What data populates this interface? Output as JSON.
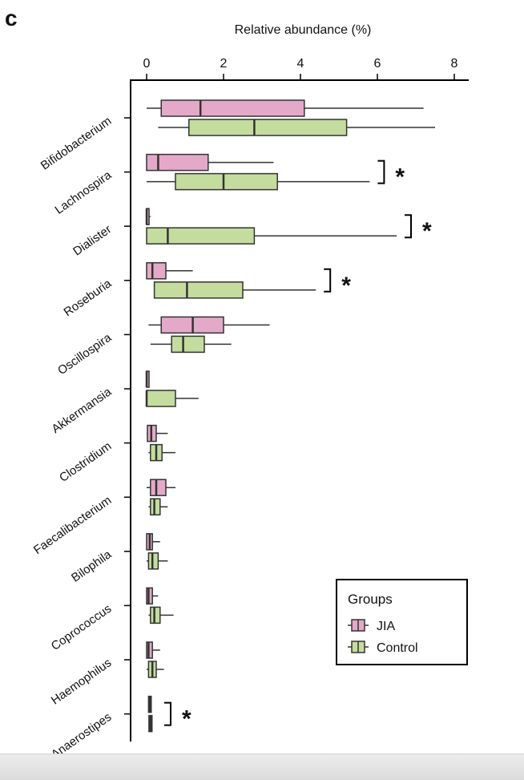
{
  "panel": {
    "letter": "c"
  },
  "colors": {
    "jia_fill": "#e4a9c8",
    "control_fill": "#c4dd9e",
    "stroke": "#333333",
    "axis": "#000000",
    "background": "#ffffff"
  },
  "chart_data": {
    "type": "boxplot",
    "title": "Relative abundance (%)",
    "xlabel": "Relative abundance (%)",
    "ylabel": "",
    "orientation": "horizontal",
    "x_axis_position": "top",
    "xlim": [
      -0.2,
      8.3
    ],
    "xticks": [
      0,
      2,
      4,
      6,
      8
    ],
    "xtick_labels": [
      "0",
      "2",
      "4",
      "6",
      "8"
    ],
    "grid": false,
    "legend": {
      "title": "Groups",
      "placement": "bottom-right",
      "entries": [
        "JIA",
        "Control"
      ]
    },
    "series_names": [
      "JIA",
      "Control"
    ],
    "categories": [
      {
        "name": "Bifidobacterium",
        "significant": false,
        "boxes": [
          {
            "group": "JIA",
            "whisker_low": 0.0,
            "q1": 0.38,
            "median": 1.4,
            "q3": 4.1,
            "whisker_high": 7.2
          },
          {
            "group": "Control",
            "whisker_low": 0.3,
            "q1": 1.1,
            "median": 2.8,
            "q3": 5.2,
            "whisker_high": 7.5
          }
        ]
      },
      {
        "name": "Lachnospira",
        "significant": true,
        "marker": "*",
        "boxes": [
          {
            "group": "JIA",
            "whisker_low": 0.0,
            "q1": 0.0,
            "median": 0.3,
            "q3": 1.6,
            "whisker_high": 3.3
          },
          {
            "group": "Control",
            "whisker_low": 0.0,
            "q1": 0.75,
            "median": 2.0,
            "q3": 3.4,
            "whisker_high": 5.8
          }
        ]
      },
      {
        "name": "Dialister",
        "significant": true,
        "marker": "*",
        "boxes": [
          {
            "group": "JIA",
            "whisker_low": 0.0,
            "q1": 0.0,
            "median": 0.0,
            "q3": 0.05,
            "whisker_high": 0.1
          },
          {
            "group": "Control",
            "whisker_low": 0.0,
            "q1": 0.0,
            "median": 0.55,
            "q3": 2.8,
            "whisker_high": 6.5
          }
        ]
      },
      {
        "name": "Roseburia",
        "significant": true,
        "marker": "*",
        "boxes": [
          {
            "group": "JIA",
            "whisker_low": 0.0,
            "q1": 0.0,
            "median": 0.15,
            "q3": 0.5,
            "whisker_high": 1.2
          },
          {
            "group": "Control",
            "whisker_low": 0.2,
            "q1": 0.2,
            "median": 1.05,
            "q3": 2.5,
            "whisker_high": 4.4
          }
        ]
      },
      {
        "name": "Oscillospira",
        "significant": false,
        "boxes": [
          {
            "group": "JIA",
            "whisker_low": 0.05,
            "q1": 0.38,
            "median": 1.2,
            "q3": 2.0,
            "whisker_high": 3.2
          },
          {
            "group": "Control",
            "whisker_low": 0.1,
            "q1": 0.65,
            "median": 0.95,
            "q3": 1.5,
            "whisker_high": 2.2
          }
        ]
      },
      {
        "name": "Akkermansia",
        "significant": false,
        "boxes": [
          {
            "group": "JIA",
            "whisker_low": 0.0,
            "q1": 0.0,
            "median": 0.0,
            "q3": 0.0,
            "whisker_high": 0.0
          },
          {
            "group": "Control",
            "whisker_low": 0.0,
            "q1": 0.0,
            "median": 0.0,
            "q3": 0.75,
            "whisker_high": 1.35
          }
        ]
      },
      {
        "name": "Clostridium",
        "significant": false,
        "boxes": [
          {
            "group": "JIA",
            "whisker_low": 0.0,
            "q1": 0.02,
            "median": 0.12,
            "q3": 0.25,
            "whisker_high": 0.55
          },
          {
            "group": "Control",
            "whisker_low": 0.05,
            "q1": 0.1,
            "median": 0.25,
            "q3": 0.4,
            "whisker_high": 0.75
          }
        ]
      },
      {
        "name": "Faecalibacterium",
        "significant": false,
        "boxes": [
          {
            "group": "JIA",
            "whisker_low": 0.0,
            "q1": 0.1,
            "median": 0.25,
            "q3": 0.5,
            "whisker_high": 0.75
          },
          {
            "group": "Control",
            "whisker_low": 0.05,
            "q1": 0.1,
            "median": 0.2,
            "q3": 0.35,
            "whisker_high": 0.55
          }
        ]
      },
      {
        "name": "Bilophila",
        "significant": false,
        "boxes": [
          {
            "group": "JIA",
            "whisker_low": 0.0,
            "q1": 0.0,
            "median": 0.08,
            "q3": 0.15,
            "whisker_high": 0.35
          },
          {
            "group": "Control",
            "whisker_low": 0.0,
            "q1": 0.05,
            "median": 0.15,
            "q3": 0.3,
            "whisker_high": 0.55
          }
        ]
      },
      {
        "name": "Coprococcus",
        "significant": false,
        "boxes": [
          {
            "group": "JIA",
            "whisker_low": 0.0,
            "q1": 0.0,
            "median": 0.05,
            "q3": 0.15,
            "whisker_high": 0.3
          },
          {
            "group": "Control",
            "whisker_low": 0.05,
            "q1": 0.1,
            "median": 0.2,
            "q3": 0.35,
            "whisker_high": 0.7
          }
        ]
      },
      {
        "name": "Haemophilus",
        "significant": false,
        "boxes": [
          {
            "group": "JIA",
            "whisker_low": 0.0,
            "q1": 0.0,
            "median": 0.05,
            "q3": 0.15,
            "whisker_high": 0.35
          },
          {
            "group": "Control",
            "whisker_low": 0.0,
            "q1": 0.05,
            "median": 0.15,
            "q3": 0.25,
            "whisker_high": 0.45
          }
        ]
      },
      {
        "name": "Anaerostipes",
        "significant": true,
        "marker": "*",
        "boxes": [
          {
            "group": "JIA",
            "whisker_low": 0.05,
            "q1": 0.05,
            "median": 0.08,
            "q3": 0.12,
            "whisker_high": 0.12
          },
          {
            "group": "Control",
            "whisker_low": 0.05,
            "q1": 0.06,
            "median": 0.1,
            "q3": 0.14,
            "whisker_high": 0.14
          }
        ]
      }
    ]
  }
}
